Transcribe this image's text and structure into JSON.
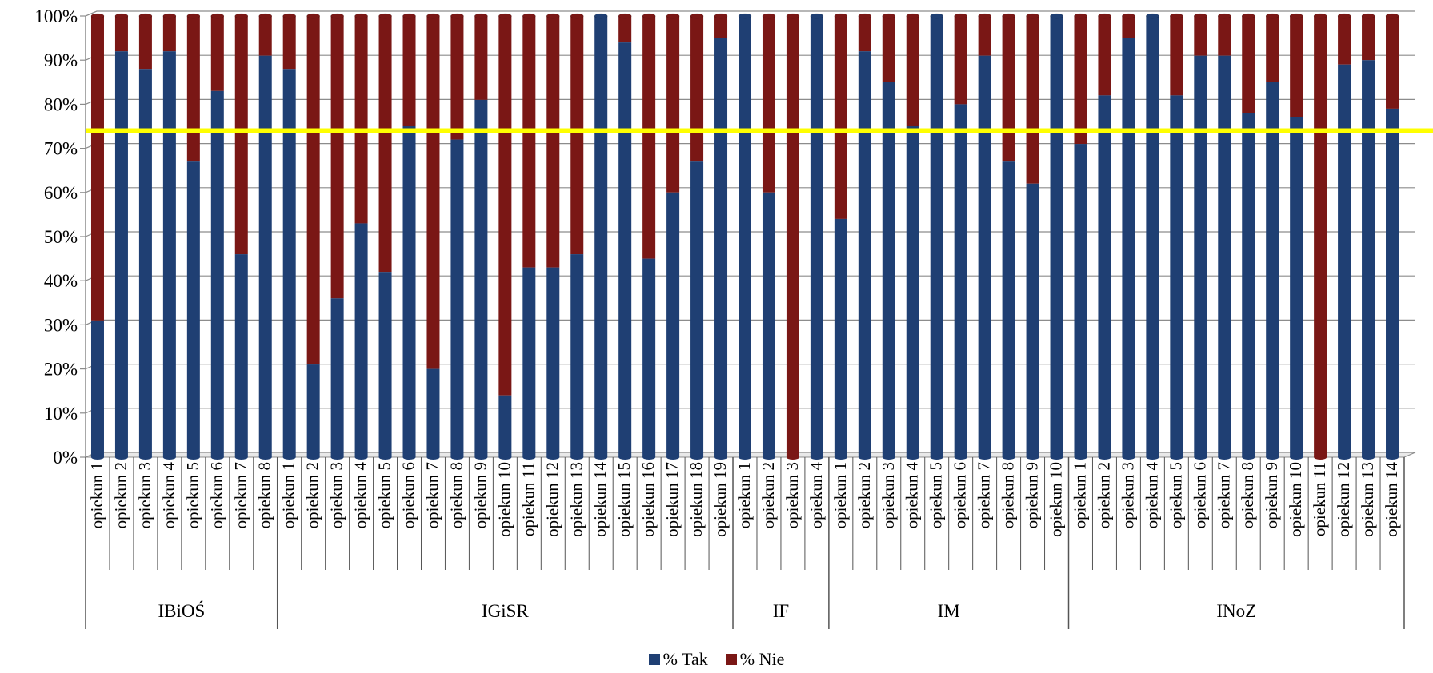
{
  "chart_data": {
    "type": "bar",
    "stacked": true,
    "percent_stacked": true,
    "y_tick_labels": [
      "0%",
      "10%",
      "20%",
      "30%",
      "40%",
      "50%",
      "60%",
      "70%",
      "80%",
      "90%",
      "100%"
    ],
    "ylim": [
      0,
      100
    ],
    "grid": true,
    "legend_position": "bottom",
    "reference_line": {
      "value": 74,
      "color": "#FFFF00"
    },
    "series": [
      {
        "name": "% Tak",
        "color": "#1F3F73"
      },
      {
        "name": "% Nie",
        "color": "#7A1715"
      }
    ],
    "groups": [
      {
        "label": "IBiOŚ",
        "categories": [
          "opiekun 1",
          "opiekun 2",
          "opiekun 3",
          "opiekun 4",
          "opiekun 5",
          "opiekun 6",
          "opiekun 7",
          "opiekun 8"
        ],
        "tak": [
          31,
          92,
          88,
          92,
          67,
          83,
          46,
          91
        ]
      },
      {
        "label": "IGiSR",
        "categories": [
          "opiekun 1",
          "opiekun 2",
          "opiekun 3",
          "opiekun 4",
          "opiekun 5",
          "opiekun 6",
          "opiekun 7",
          "opiekun 8",
          "opiekun 9",
          "opiekun 10",
          "opiekun 11",
          "opiekun 12",
          "opiekun 13",
          "opiekun 14",
          "opiekun 15",
          "opiekun 16",
          "opiekun 17",
          "opiekun 18",
          "opiekun 19"
        ],
        "tak": [
          88,
          21,
          36,
          53,
          42,
          75,
          20,
          72,
          81,
          14,
          43,
          43,
          46,
          100,
          94,
          45,
          60,
          67,
          95
        ]
      },
      {
        "label": "IF",
        "categories": [
          "opiekun 1",
          "opiekun 2",
          "opiekun 3",
          "opiekun 4"
        ],
        "tak": [
          100,
          60,
          0,
          100
        ]
      },
      {
        "label": "IM",
        "categories": [
          "opiekun 1",
          "opiekun 2",
          "opiekun 3",
          "opiekun 4",
          "opiekun 5",
          "opiekun 6",
          "opiekun 7",
          "opiekun 8",
          "opiekun 9",
          "opiekun 10"
        ],
        "tak": [
          54,
          92,
          85,
          75,
          100,
          80,
          91,
          67,
          62,
          100
        ]
      },
      {
        "label": "INoZ",
        "categories": [
          "opiekun 1",
          "opiekun 2",
          "opiekun 3",
          "opiekun 4",
          "opiekun 5",
          "opiekun 6",
          "opiekun 7",
          "opiekun 8",
          "opiekun 9",
          "opiekun 10",
          "opiekun 11",
          "opiekun 12",
          "opiekun 13",
          "opiekun 14"
        ],
        "tak": [
          71,
          82,
          95,
          100,
          82,
          91,
          91,
          78,
          85,
          77,
          0,
          89,
          90,
          79
        ]
      }
    ]
  },
  "legend": {
    "items": [
      {
        "label": "% Tak",
        "color": "#1F3F73"
      },
      {
        "label": "% Nie",
        "color": "#7A1715"
      }
    ]
  }
}
